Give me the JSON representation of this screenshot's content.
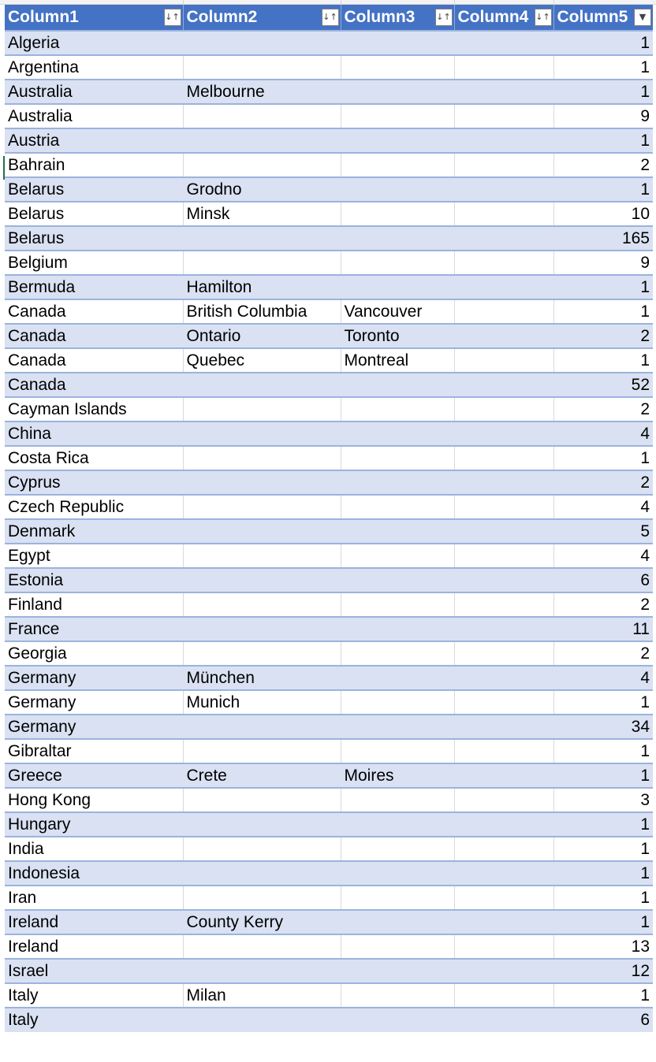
{
  "header": {
    "columns": [
      "Column1",
      "Column2",
      "Column3",
      "Column4",
      "Column5"
    ],
    "filter_icons": [
      "sort-filter-icon",
      "sort-filter-icon",
      "sort-filter-icon",
      "sort-filter-icon",
      "filter-dropdown-icon"
    ]
  },
  "colors": {
    "header_bg": "#4472c4",
    "band_row_bg": "#d9e1f2",
    "row_border": "#9bb3dd"
  },
  "rows": [
    [
      "Algeria",
      "",
      "",
      "",
      "1"
    ],
    [
      "Argentina",
      "",
      "",
      "",
      "1"
    ],
    [
      "Australia",
      "Melbourne",
      "",
      "",
      "1"
    ],
    [
      "Australia",
      "",
      "",
      "",
      "9"
    ],
    [
      "Austria",
      "",
      "",
      "",
      "1"
    ],
    [
      "Bahrain",
      "",
      "",
      "",
      "2"
    ],
    [
      "Belarus",
      "Grodno",
      "",
      "",
      "1"
    ],
    [
      "Belarus",
      "Minsk",
      "",
      "",
      "10"
    ],
    [
      "Belarus",
      "",
      "",
      "",
      "165"
    ],
    [
      "Belgium",
      "",
      "",
      "",
      "9"
    ],
    [
      "Bermuda",
      "Hamilton",
      "",
      "",
      "1"
    ],
    [
      "Canada",
      "British Columbia",
      "Vancouver",
      "",
      "1"
    ],
    [
      "Canada",
      "Ontario",
      "Toronto",
      "",
      "2"
    ],
    [
      "Canada",
      "Quebec",
      "Montreal",
      "",
      "1"
    ],
    [
      "Canada",
      "",
      "",
      "",
      "52"
    ],
    [
      "Cayman Islands",
      "",
      "",
      "",
      "2"
    ],
    [
      "China",
      "",
      "",
      "",
      "4"
    ],
    [
      "Costa Rica",
      "",
      "",
      "",
      "1"
    ],
    [
      "Cyprus",
      "",
      "",
      "",
      "2"
    ],
    [
      "Czech Republic",
      "",
      "",
      "",
      "4"
    ],
    [
      "Denmark",
      "",
      "",
      "",
      "5"
    ],
    [
      "Egypt",
      "",
      "",
      "",
      "4"
    ],
    [
      "Estonia",
      "",
      "",
      "",
      "6"
    ],
    [
      "Finland",
      "",
      "",
      "",
      "2"
    ],
    [
      "France",
      "",
      "",
      "",
      "11"
    ],
    [
      "Georgia",
      "",
      "",
      "",
      "2"
    ],
    [
      "Germany",
      "München",
      "",
      "",
      "4"
    ],
    [
      "Germany",
      "Munich",
      "",
      "",
      "1"
    ],
    [
      "Germany",
      "",
      "",
      "",
      "34"
    ],
    [
      "Gibraltar",
      "",
      "",
      "",
      "1"
    ],
    [
      "Greece",
      "Crete",
      "Moires",
      "",
      "1"
    ],
    [
      "Hong Kong",
      "",
      "",
      "",
      "3"
    ],
    [
      "Hungary",
      "",
      "",
      "",
      "1"
    ],
    [
      "India",
      "",
      "",
      "",
      "1"
    ],
    [
      "Indonesia",
      "",
      "",
      "",
      "1"
    ],
    [
      "Iran",
      "",
      "",
      "",
      "1"
    ],
    [
      "Ireland",
      "County Kerry",
      "",
      "",
      "1"
    ],
    [
      "Ireland",
      "",
      "",
      "",
      "13"
    ],
    [
      "Israel",
      "",
      "",
      "",
      "12"
    ],
    [
      "Italy",
      "Milan",
      "",
      "",
      "1"
    ],
    [
      "Italy",
      "",
      "",
      "",
      "6"
    ]
  ]
}
